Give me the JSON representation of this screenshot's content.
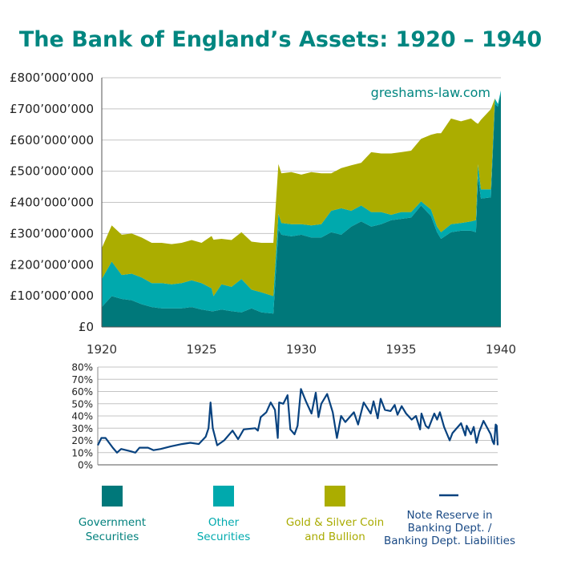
{
  "chart_data": [
    {
      "type": "area",
      "stacked": true,
      "title": "The Bank of England’s Assets: 1920 – 1940",
      "watermark": "greshams-law.com",
      "xlim": [
        1920,
        1940
      ],
      "ylim": [
        0,
        800000000
      ],
      "x_ticks": [
        "1920",
        "1925",
        "1930",
        "1935",
        "1940"
      ],
      "y_ticks": [
        "£0",
        "£100’000’000",
        "£200’000’000",
        "£300’000’000",
        "£400’000’000",
        "£500’000’000",
        "£600’000’000",
        "£700’000’000",
        "£800’000’000"
      ],
      "grid": "horizontal",
      "value_unit": "£ millions",
      "x": [
        1920.0,
        1920.5,
        1921.0,
        1921.5,
        1922.0,
        1922.5,
        1923.0,
        1923.5,
        1924.0,
        1924.5,
        1925.0,
        1925.5,
        1925.6,
        1926.0,
        1926.5,
        1927.0,
        1927.5,
        1928.0,
        1928.6,
        1928.85,
        1929.0,
        1929.5,
        1930.0,
        1930.5,
        1931.0,
        1931.5,
        1932.0,
        1932.5,
        1933.0,
        1933.5,
        1934.0,
        1934.5,
        1935.0,
        1935.5,
        1936.0,
        1936.5,
        1936.8,
        1937.0,
        1937.5,
        1938.0,
        1938.5,
        1938.75,
        1938.85,
        1939.0,
        1939.5,
        1939.7,
        1939.85,
        1940.0
      ],
      "series": [
        {
          "name": "Government Securities",
          "color": "#00787a",
          "values": [
            64,
            99,
            90,
            86,
            73,
            64,
            60,
            60,
            60,
            64,
            56,
            51,
            51,
            56,
            51,
            47,
            60,
            47,
            43,
            313,
            296,
            291,
            296,
            287,
            287,
            304,
            296,
            322,
            339,
            322,
            330,
            343,
            347,
            351,
            390,
            356,
            304,
            283,
            304,
            309,
            309,
            304,
            484,
            412,
            416,
            716,
            707,
            750
          ]
        },
        {
          "name": "Other Securities",
          "color": "#00a9ad",
          "values": [
            90,
            111,
            77,
            85,
            86,
            77,
            81,
            77,
            81,
            86,
            85,
            73,
            48,
            81,
            78,
            107,
            60,
            64,
            56,
            51,
            38,
            39,
            34,
            39,
            43,
            69,
            85,
            51,
            51,
            47,
            39,
            17,
            22,
            18,
            13,
            21,
            18,
            21,
            26,
            25,
            30,
            39,
            39,
            30,
            26,
            17,
            9,
            9
          ]
        },
        {
          "name": "Gold & Silver Coin and Bullion",
          "color": "#abad00",
          "values": [
            99,
            116,
            129,
            129,
            128,
            129,
            129,
            129,
            129,
            129,
            129,
            168,
            181,
            146,
            150,
            150,
            154,
            159,
            171,
            159,
            159,
            167,
            159,
            171,
            163,
            120,
            129,
            146,
            137,
            192,
            188,
            197,
            192,
            197,
            201,
            240,
            300,
            318,
            339,
            326,
            330,
            313,
            129,
            223,
            257,
            0,
            0,
            0
          ]
        }
      ]
    },
    {
      "type": "line",
      "xlim": [
        1920,
        1940
      ],
      "ylim": [
        0,
        80
      ],
      "y_ticks": [
        "0%",
        "10%",
        "20%",
        "30%",
        "40%",
        "50%",
        "60%",
        "70%",
        "80%"
      ],
      "grid": "horizontal",
      "series": [
        {
          "name": "Note Reserve in Banking Dept. / Banking Dept. Liabilities",
          "color": "#08427f",
          "x": [
            1920.0,
            1920.18,
            1920.39,
            1920.75,
            1920.96,
            1921.17,
            1921.66,
            1921.88,
            1922.09,
            1922.51,
            1922.79,
            1923.15,
            1923.64,
            1924.2,
            1924.63,
            1925.05,
            1925.4,
            1925.54,
            1925.64,
            1925.75,
            1925.97,
            1926.32,
            1926.74,
            1927.02,
            1927.3,
            1927.87,
            1928.01,
            1928.15,
            1928.43,
            1928.65,
            1928.86,
            1929.0,
            1929.07,
            1929.28,
            1929.49,
            1929.63,
            1929.84,
            1929.99,
            1930.16,
            1930.41,
            1930.69,
            1930.9,
            1931.04,
            1931.18,
            1931.47,
            1931.75,
            1931.96,
            1932.17,
            1932.38,
            1932.81,
            1933.02,
            1933.3,
            1933.65,
            1933.79,
            1934.0,
            1934.15,
            1934.36,
            1934.64,
            1934.85,
            1934.99,
            1935.2,
            1935.42,
            1935.7,
            1935.91,
            1936.12,
            1936.19,
            1936.4,
            1936.54,
            1936.83,
            1936.97,
            1937.11,
            1937.32,
            1937.6,
            1937.74,
            1938.17,
            1938.38,
            1938.45,
            1938.66,
            1938.8,
            1938.94,
            1939.08,
            1939.29,
            1939.65,
            1939.75,
            1939.82,
            1939.9,
            1939.95,
            1940.0
          ],
          "values": [
            16,
            22,
            22,
            14,
            10,
            13,
            11,
            10,
            14,
            14,
            12,
            13,
            15,
            17,
            18,
            17,
            23,
            30,
            51,
            30,
            16,
            20,
            28,
            21,
            29,
            30,
            28,
            39,
            43,
            51,
            45,
            22,
            51,
            50,
            57,
            29,
            25,
            32,
            62,
            52,
            42,
            59,
            39,
            50,
            58,
            43,
            22,
            40,
            35,
            43,
            33,
            51,
            42,
            52,
            38,
            54,
            45,
            44,
            49,
            41,
            48,
            42,
            37,
            40,
            29,
            42,
            32,
            30,
            42,
            37,
            43,
            31,
            20,
            26,
            34,
            24,
            32,
            25,
            31,
            18,
            27,
            36,
            25,
            19,
            17,
            33,
            32,
            16
          ]
        }
      ]
    }
  ],
  "legend": [
    {
      "lines": [
        "Government",
        "Securities"
      ],
      "color": "#00787a",
      "text_color": "#00807c",
      "kind": "swatch"
    },
    {
      "lines": [
        "Other",
        "Securities"
      ],
      "color": "#00a9ad",
      "text_color": "#00aaae",
      "kind": "swatch"
    },
    {
      "lines": [
        "Gold & Silver Coin",
        "and Bullion"
      ],
      "color": "#abad00",
      "text_color": "#a9ab00",
      "kind": "swatch"
    },
    {
      "lines": [
        "Note Reserve in",
        "Banking Dept. /",
        "Banking Dept. Liabilities"
      ],
      "color": "#08427f",
      "text_color": "#1a4a85",
      "kind": "line"
    }
  ]
}
